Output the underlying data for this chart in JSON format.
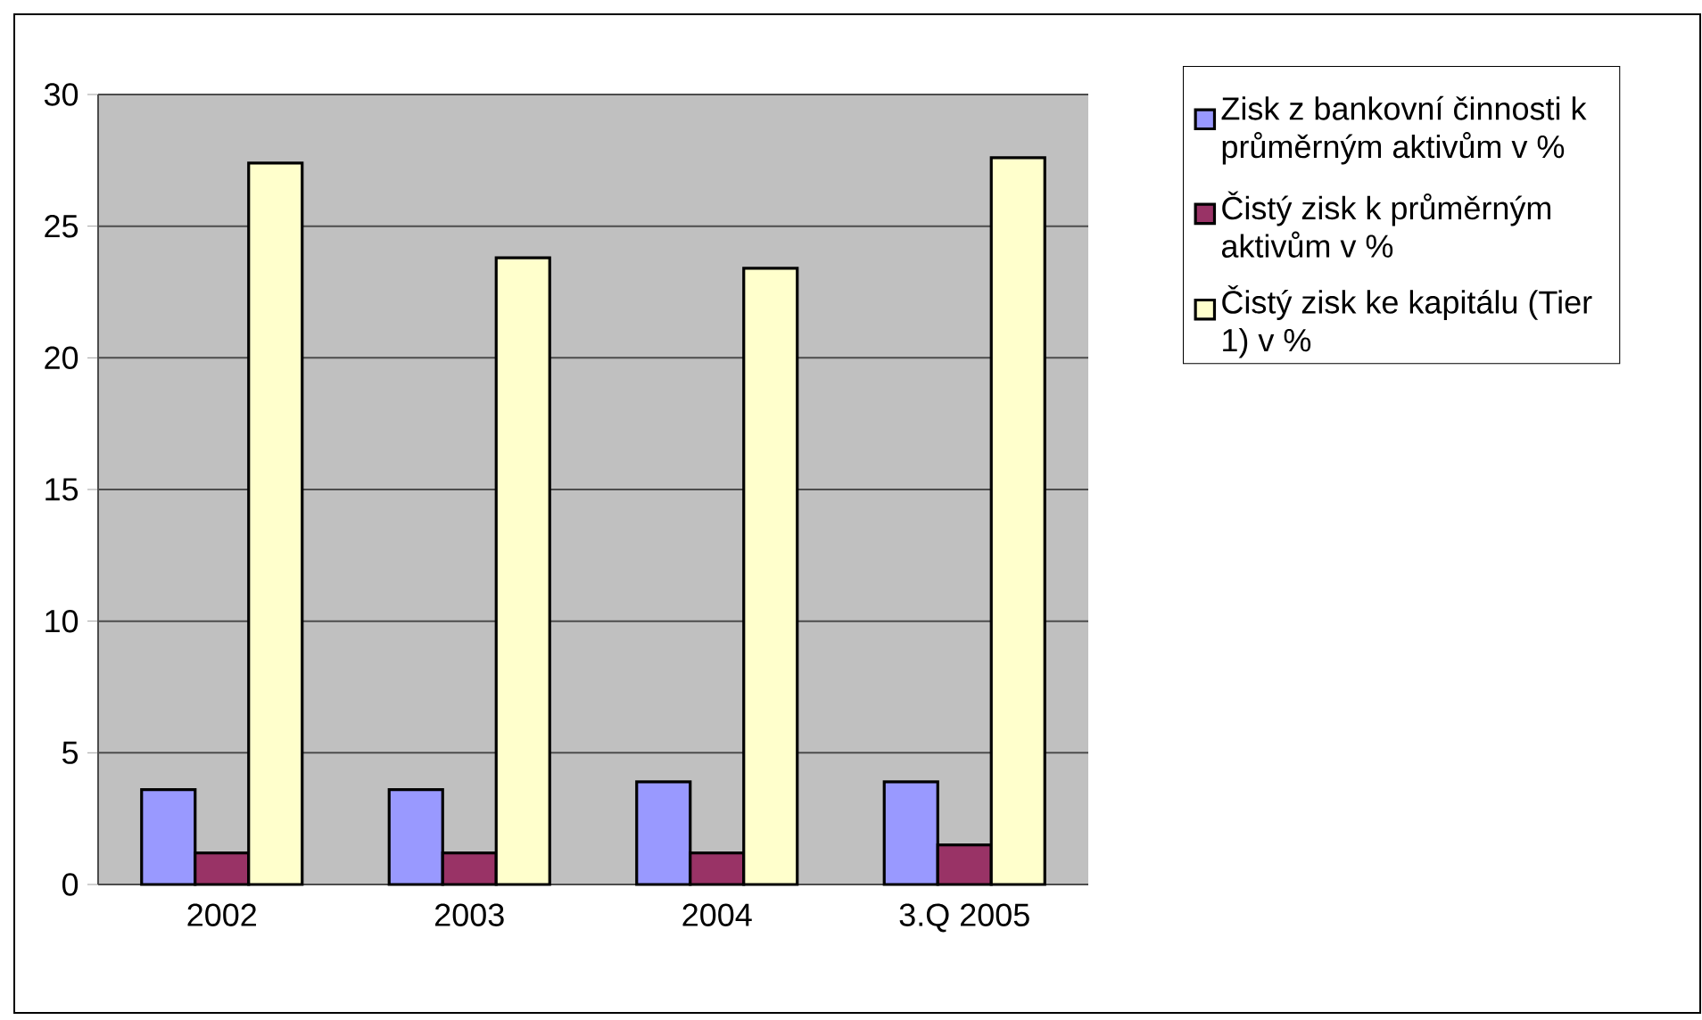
{
  "chart_data": {
    "type": "bar",
    "categories": [
      "2002",
      "2003",
      "2004",
      "3.Q 2005"
    ],
    "series": [
      {
        "name": "Zisk z bankovní činnosti k průměrným aktivům v %",
        "color": "#9999ff",
        "values": [
          3.6,
          3.6,
          3.9,
          3.9
        ]
      },
      {
        "name": "Čistý zisk k průměrným aktivům v %",
        "color": "#993366",
        "values": [
          1.2,
          1.2,
          1.2,
          1.5
        ]
      },
      {
        "name": "Čistý zisk ke kapitálu (Tier 1)  v %",
        "color": "#ffffcc",
        "values": [
          27.4,
          23.8,
          23.4,
          27.6
        ]
      }
    ],
    "ylim": [
      0,
      30
    ],
    "yticks": [
      0,
      5,
      10,
      15,
      20,
      25,
      30
    ],
    "grid": "y",
    "legend": "right"
  }
}
